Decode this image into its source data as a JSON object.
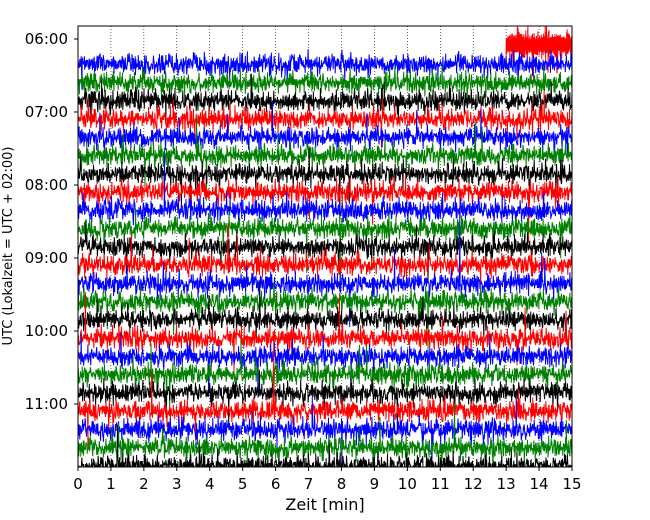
{
  "chart_data": {
    "type": "line",
    "title": "",
    "xlabel": "Zeit  [min]",
    "ylabel": "UTC (Lokalzeit = UTC + 02:00)",
    "xlim": [
      0,
      15
    ],
    "x_ticks": [
      0,
      1,
      2,
      3,
      4,
      5,
      6,
      7,
      8,
      9,
      10,
      11,
      12,
      13,
      14,
      15
    ],
    "x_tick_labels": [
      "0",
      "1",
      "2",
      "3",
      "4",
      "5",
      "6",
      "7",
      "8",
      "9",
      "10",
      "11",
      "12",
      "13",
      "14",
      "15"
    ],
    "y_tick_labels": [
      "06:00",
      "07:00",
      "08:00",
      "09:00",
      "10:00",
      "11:00"
    ],
    "y_axis_inverted": true,
    "grid": "vertical dotted lines, visible above the first trace",
    "legend": "none",
    "trace_duration_min": 15,
    "trace_color_cycle": [
      "#ff0000",
      "#0000ff",
      "#008000",
      "#000000"
    ],
    "trace_starts_utc": [
      "06:15",
      "06:30",
      "06:45",
      "07:00",
      "07:15",
      "07:30",
      "07:45",
      "08:00",
      "08:15",
      "08:30",
      "08:45",
      "09:00",
      "09:15",
      "09:30",
      "09:45",
      "10:00",
      "10:15",
      "10:30",
      "10:45",
      "11:00",
      "11:15",
      "11:30",
      "11:45"
    ],
    "first_trace_start_utc": "06:00",
    "first_trace_start_min": 13.0
  }
}
